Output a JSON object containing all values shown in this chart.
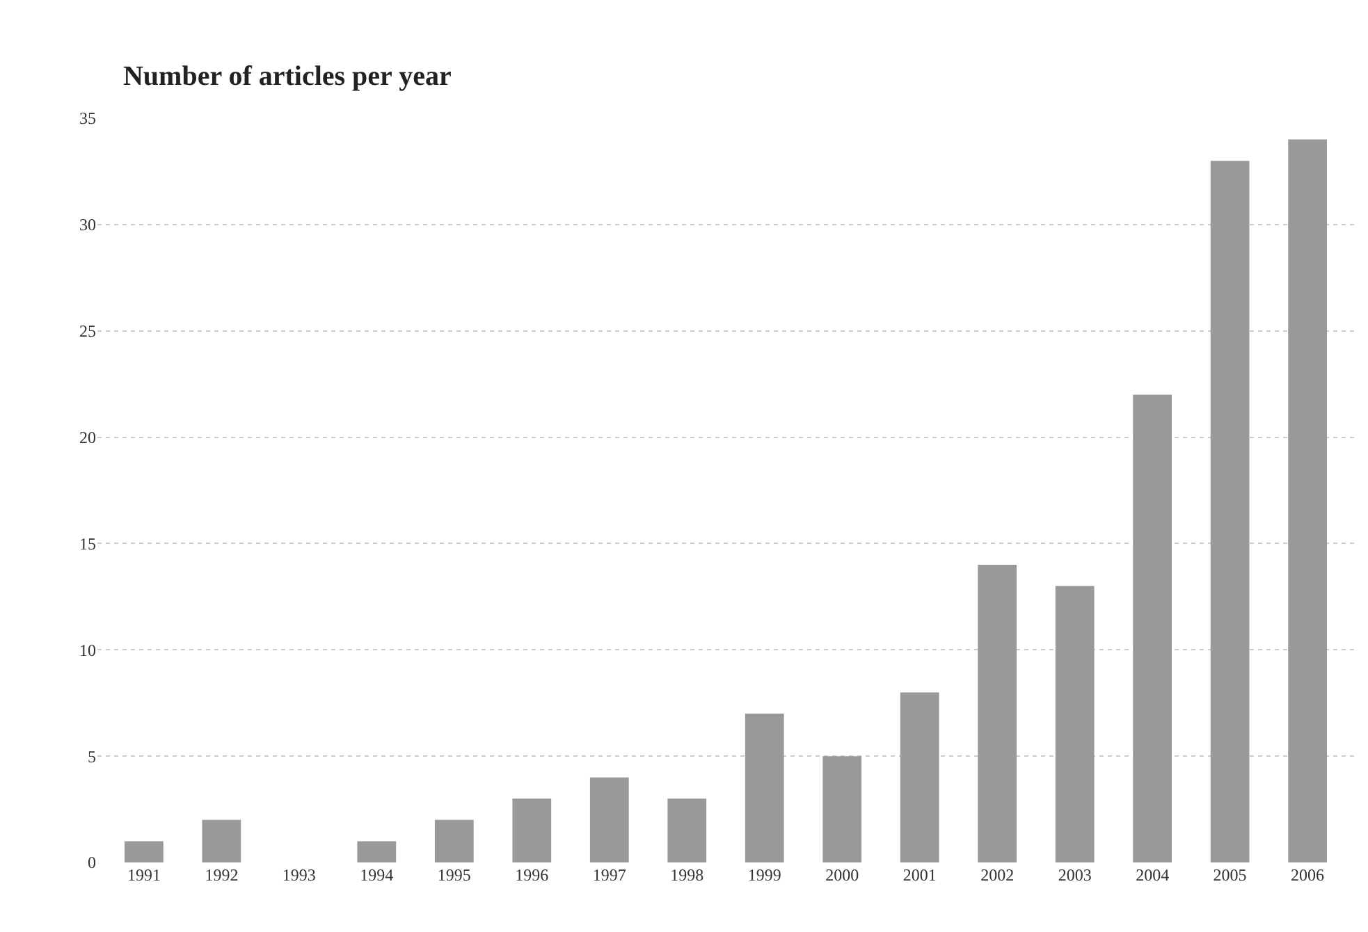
{
  "chart_data": {
    "type": "bar",
    "title": "Number of articles per year",
    "categories": [
      "1991",
      "1992",
      "1993",
      "1994",
      "1995",
      "1996",
      "1997",
      "1998",
      "1999",
      "2000",
      "2001",
      "2002",
      "2003",
      "2004",
      "2005",
      "2006"
    ],
    "values": [
      1,
      2,
      0,
      1,
      2,
      3,
      4,
      3,
      7,
      5,
      8,
      14,
      13,
      22,
      33,
      34
    ],
    "color": "#999999",
    "ylim": [
      0,
      35
    ],
    "yticks": [
      0,
      5,
      10,
      15,
      20,
      25,
      30,
      35
    ],
    "grid": "y"
  }
}
